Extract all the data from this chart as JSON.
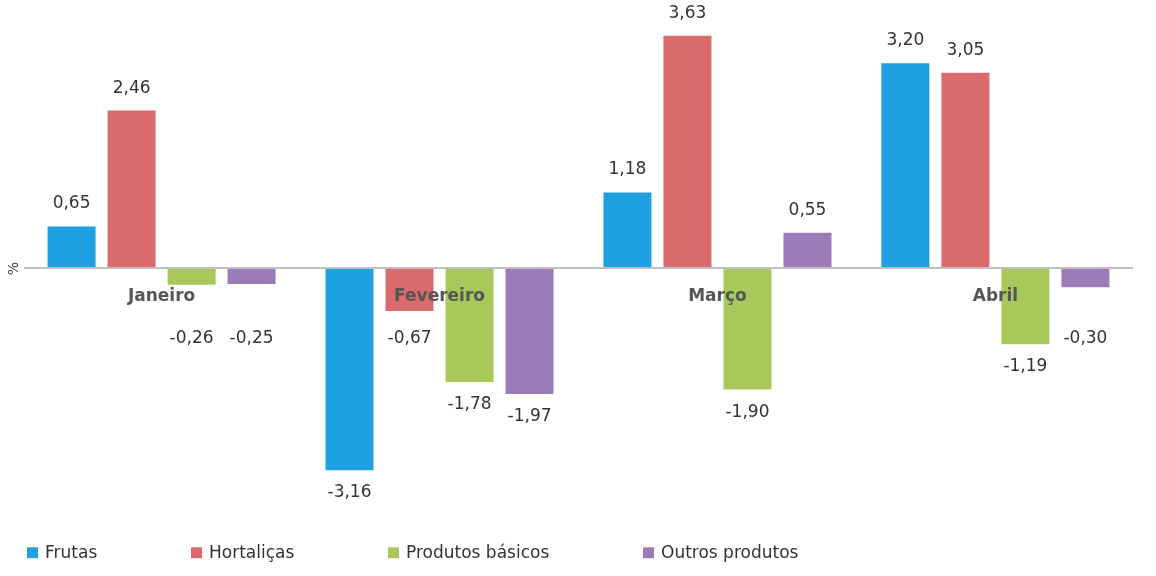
{
  "chart_data": {
    "type": "bar",
    "ylabel": "%",
    "categories": [
      "Janeiro",
      "Fevereiro",
      "Março",
      "Abril"
    ],
    "series": [
      {
        "name": "Frutas",
        "color": "#1fa0e0",
        "values": [
          0.65,
          -3.16,
          1.18,
          3.2
        ],
        "value_labels": [
          "0,65",
          "-3,16",
          "1,18",
          "3,20"
        ]
      },
      {
        "name": "Hortaliças",
        "color": "#d96b6c",
        "values": [
          2.46,
          -0.67,
          3.63,
          3.05
        ],
        "value_labels": [
          "2,46",
          "-0,67",
          "3,63",
          "3,05"
        ]
      },
      {
        "name": "Produtos básicos",
        "color": "#a8c85c",
        "values": [
          -0.26,
          -1.78,
          -1.9,
          -1.19
        ],
        "value_labels": [
          "-0,26",
          "-1,78",
          "-1,90",
          "-1,19"
        ]
      },
      {
        "name": "Outros produtos",
        "color": "#9b7cb9",
        "values": [
          -0.25,
          -1.97,
          0.55,
          -0.3
        ],
        "value_labels": [
          "-0,25",
          "-1,97",
          "0,55",
          "-0,30"
        ]
      }
    ],
    "legend": "bottom",
    "grid": false
  }
}
